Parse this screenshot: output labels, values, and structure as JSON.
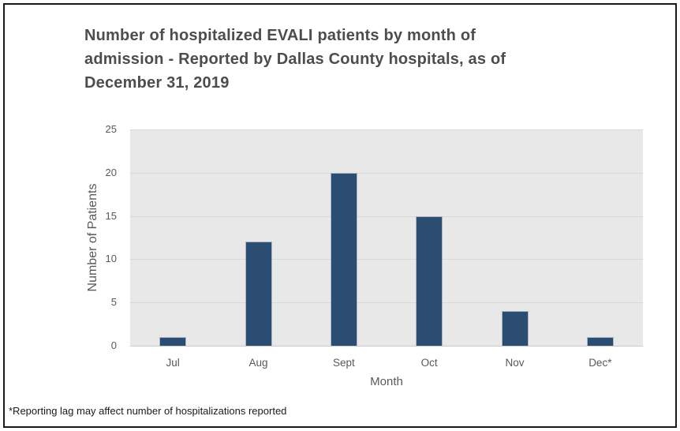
{
  "frame": {
    "border_color": "#1a1a1a",
    "background_color": "#ffffff"
  },
  "chart_data": {
    "type": "bar",
    "title": "Number of hospitalized EVALI patients by month of admission - Reported by Dallas County hospitals, as of December 31, 2019",
    "categories": [
      "Jul",
      "Aug",
      "Sept",
      "Oct",
      "Nov",
      "Dec*"
    ],
    "values": [
      1,
      12,
      20,
      15,
      4,
      1
    ],
    "xlabel": "Month",
    "ylabel": "Number of Patients",
    "ylim": [
      0,
      25
    ],
    "yticks": [
      0,
      5,
      10,
      15,
      20,
      25
    ],
    "grid": true,
    "legend": "none",
    "bar_color": "#2b4d71",
    "bar_border_color": "#a7b6c6",
    "plot_background_color": "#e8e8e8",
    "gridline_color": "#d7d7d7",
    "axis_line_color": "#c9c9c9",
    "tick_label_color": "#595959",
    "title_color": "#4d4d4d"
  },
  "footnote": "*Reporting lag may affect number of hospitalizations reported"
}
